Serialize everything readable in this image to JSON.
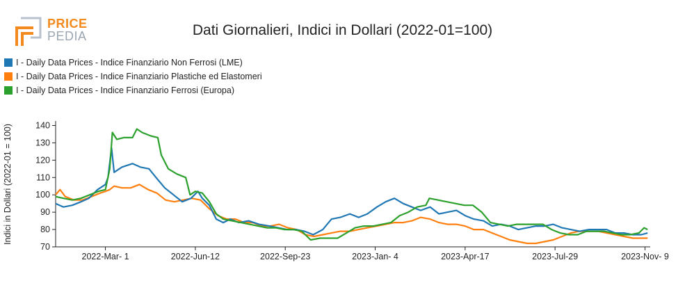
{
  "logo": {
    "text_top": "PRICE",
    "text_bottom": "PEDIA"
  },
  "chart_data": {
    "type": "line",
    "title": "Dati Giornalieri, Indici in Dollari (2022-01=100)",
    "ylabel": "Indici in Dollari (2022-01 = 100)",
    "xlabel": "",
    "ylim": [
      70,
      141
    ],
    "xlim": [
      "2022-01-03",
      "2023-11-15"
    ],
    "yticks": [
      70,
      80,
      90,
      100,
      110,
      120,
      130,
      140
    ],
    "xticks": [
      {
        "date": "2022-03-01",
        "label": "2022-Mar- 1"
      },
      {
        "date": "2022-06-12",
        "label": "2022-Jun-12"
      },
      {
        "date": "2022-09-23",
        "label": "2022-Sep-23"
      },
      {
        "date": "2023-01-04",
        "label": "2023-Jan- 4"
      },
      {
        "date": "2023-04-17",
        "label": "2023-Apr-17"
      },
      {
        "date": "2023-07-29",
        "label": "2023-Jul-29"
      },
      {
        "date": "2023-11-09",
        "label": "2023-Nov- 9"
      }
    ],
    "legend_position": "top-left",
    "grid": false,
    "series": [
      {
        "name": "I - Daily Data Prices - Indice Finanziario Non Ferrosi (LME)",
        "color": "#1f77b4",
        "points": [
          [
            "2022-01-03",
            95
          ],
          [
            "2022-01-12",
            93
          ],
          [
            "2022-01-22",
            94
          ],
          [
            "2022-02-01",
            96
          ],
          [
            "2022-02-10",
            98
          ],
          [
            "2022-02-20",
            103
          ],
          [
            "2022-03-01",
            106
          ],
          [
            "2022-03-04",
            110
          ],
          [
            "2022-03-08",
            127
          ],
          [
            "2022-03-11",
            113
          ],
          [
            "2022-03-20",
            116
          ],
          [
            "2022-04-01",
            118
          ],
          [
            "2022-04-10",
            116
          ],
          [
            "2022-04-20",
            115
          ],
          [
            "2022-04-28",
            110
          ],
          [
            "2022-05-08",
            104
          ],
          [
            "2022-05-18",
            100
          ],
          [
            "2022-05-28",
            96
          ],
          [
            "2022-06-07",
            98
          ],
          [
            "2022-06-15",
            102
          ],
          [
            "2022-06-20",
            98
          ],
          [
            "2022-06-28",
            94
          ],
          [
            "2022-07-06",
            86
          ],
          [
            "2022-07-14",
            84
          ],
          [
            "2022-07-22",
            86
          ],
          [
            "2022-08-01",
            84
          ],
          [
            "2022-08-12",
            85
          ],
          [
            "2022-08-24",
            83
          ],
          [
            "2022-09-05",
            82
          ],
          [
            "2022-09-15",
            81
          ],
          [
            "2022-09-25",
            80
          ],
          [
            "2022-10-05",
            80
          ],
          [
            "2022-10-15",
            79
          ],
          [
            "2022-10-25",
            77
          ],
          [
            "2022-11-05",
            80
          ],
          [
            "2022-11-15",
            86
          ],
          [
            "2022-11-25",
            87
          ],
          [
            "2022-12-06",
            89
          ],
          [
            "2022-12-16",
            87
          ],
          [
            "2022-12-26",
            89
          ],
          [
            "2023-01-06",
            93
          ],
          [
            "2023-01-16",
            96
          ],
          [
            "2023-01-26",
            98
          ],
          [
            "2023-02-05",
            95
          ],
          [
            "2023-02-15",
            93
          ],
          [
            "2023-02-25",
            91
          ],
          [
            "2023-03-08",
            93
          ],
          [
            "2023-03-18",
            89
          ],
          [
            "2023-03-28",
            90
          ],
          [
            "2023-04-07",
            91
          ],
          [
            "2023-04-17",
            88
          ],
          [
            "2023-04-27",
            86
          ],
          [
            "2023-05-08",
            85
          ],
          [
            "2023-05-18",
            82
          ],
          [
            "2023-05-28",
            83
          ],
          [
            "2023-06-07",
            82
          ],
          [
            "2023-06-17",
            80
          ],
          [
            "2023-06-27",
            81
          ],
          [
            "2023-07-07",
            82
          ],
          [
            "2023-07-17",
            82
          ],
          [
            "2023-07-27",
            83
          ],
          [
            "2023-08-06",
            81
          ],
          [
            "2023-08-16",
            80
          ],
          [
            "2023-08-26",
            79
          ],
          [
            "2023-09-06",
            80
          ],
          [
            "2023-09-16",
            80
          ],
          [
            "2023-09-26",
            80
          ],
          [
            "2023-10-06",
            78
          ],
          [
            "2023-10-16",
            78
          ],
          [
            "2023-10-26",
            77
          ],
          [
            "2023-11-05",
            77
          ],
          [
            "2023-11-12",
            78
          ]
        ]
      },
      {
        "name": "I - Daily Data Prices - Indice Finanziario Plastiche ed Elastomeri",
        "color": "#ff7f0e",
        "points": [
          [
            "2022-01-03",
            100
          ],
          [
            "2022-01-08",
            103
          ],
          [
            "2022-01-14",
            99
          ],
          [
            "2022-01-24",
            97
          ],
          [
            "2022-02-03",
            97
          ],
          [
            "2022-02-13",
            99
          ],
          [
            "2022-02-23",
            101
          ],
          [
            "2022-03-01",
            102
          ],
          [
            "2022-03-06",
            103
          ],
          [
            "2022-03-11",
            105
          ],
          [
            "2022-03-20",
            104
          ],
          [
            "2022-03-30",
            104
          ],
          [
            "2022-04-09",
            106
          ],
          [
            "2022-04-19",
            103
          ],
          [
            "2022-04-29",
            101
          ],
          [
            "2022-05-09",
            97
          ],
          [
            "2022-05-19",
            96
          ],
          [
            "2022-05-29",
            97
          ],
          [
            "2022-06-08",
            98
          ],
          [
            "2022-06-18",
            97
          ],
          [
            "2022-06-28",
            92
          ],
          [
            "2022-07-08",
            88
          ],
          [
            "2022-07-18",
            86
          ],
          [
            "2022-07-28",
            86
          ],
          [
            "2022-08-07",
            84
          ],
          [
            "2022-08-17",
            84
          ],
          [
            "2022-08-27",
            82
          ],
          [
            "2022-09-06",
            82
          ],
          [
            "2022-09-16",
            83
          ],
          [
            "2022-09-26",
            81
          ],
          [
            "2022-10-06",
            80
          ],
          [
            "2022-10-16",
            77
          ],
          [
            "2022-10-26",
            76
          ],
          [
            "2022-11-05",
            77
          ],
          [
            "2022-11-15",
            78
          ],
          [
            "2022-11-25",
            79
          ],
          [
            "2022-12-06",
            79
          ],
          [
            "2022-12-16",
            80
          ],
          [
            "2022-12-26",
            81
          ],
          [
            "2023-01-06",
            82
          ],
          [
            "2023-01-16",
            83
          ],
          [
            "2023-01-26",
            84
          ],
          [
            "2023-02-05",
            84
          ],
          [
            "2023-02-15",
            85
          ],
          [
            "2023-02-25",
            87
          ],
          [
            "2023-03-08",
            86
          ],
          [
            "2023-03-18",
            84
          ],
          [
            "2023-03-28",
            83
          ],
          [
            "2023-04-07",
            83
          ],
          [
            "2023-04-17",
            82
          ],
          [
            "2023-04-27",
            80
          ],
          [
            "2023-05-08",
            80
          ],
          [
            "2023-05-18",
            78
          ],
          [
            "2023-05-28",
            76
          ],
          [
            "2023-06-07",
            74
          ],
          [
            "2023-06-17",
            73
          ],
          [
            "2023-06-27",
            72
          ],
          [
            "2023-07-07",
            72
          ],
          [
            "2023-07-17",
            73
          ],
          [
            "2023-07-27",
            74
          ],
          [
            "2023-08-06",
            76
          ],
          [
            "2023-08-16",
            78
          ],
          [
            "2023-08-26",
            79
          ],
          [
            "2023-09-06",
            79
          ],
          [
            "2023-09-16",
            79
          ],
          [
            "2023-09-26",
            78
          ],
          [
            "2023-10-06",
            77
          ],
          [
            "2023-10-16",
            76
          ],
          [
            "2023-10-26",
            75
          ],
          [
            "2023-11-05",
            75
          ],
          [
            "2023-11-12",
            75
          ]
        ]
      },
      {
        "name": "I - Daily Data Prices - Indice Finanziario Ferrosi (Europa)",
        "color": "#2ca02c",
        "points": [
          [
            "2022-01-03",
            99
          ],
          [
            "2022-01-12",
            98
          ],
          [
            "2022-01-22",
            97
          ],
          [
            "2022-02-01",
            98
          ],
          [
            "2022-02-11",
            100
          ],
          [
            "2022-02-21",
            102
          ],
          [
            "2022-03-01",
            103
          ],
          [
            "2022-03-06",
            115
          ],
          [
            "2022-03-09",
            136
          ],
          [
            "2022-03-14",
            132
          ],
          [
            "2022-03-22",
            133
          ],
          [
            "2022-04-01",
            133
          ],
          [
            "2022-04-06",
            138
          ],
          [
            "2022-04-12",
            136
          ],
          [
            "2022-04-22",
            134
          ],
          [
            "2022-04-30",
            133
          ],
          [
            "2022-05-04",
            123
          ],
          [
            "2022-05-12",
            115
          ],
          [
            "2022-05-22",
            112
          ],
          [
            "2022-06-01",
            110
          ],
          [
            "2022-06-06",
            100
          ],
          [
            "2022-06-12",
            102
          ],
          [
            "2022-06-20",
            101
          ],
          [
            "2022-06-28",
            96
          ],
          [
            "2022-07-06",
            89
          ],
          [
            "2022-07-14",
            86
          ],
          [
            "2022-07-24",
            85
          ],
          [
            "2022-08-03",
            84
          ],
          [
            "2022-08-13",
            83
          ],
          [
            "2022-08-23",
            82
          ],
          [
            "2022-09-02",
            81
          ],
          [
            "2022-09-12",
            81
          ],
          [
            "2022-09-22",
            80
          ],
          [
            "2022-10-02",
            80
          ],
          [
            "2022-10-12",
            79
          ],
          [
            "2022-10-22",
            74
          ],
          [
            "2022-11-02",
            75
          ],
          [
            "2022-11-12",
            75
          ],
          [
            "2022-11-22",
            75
          ],
          [
            "2022-12-02",
            78
          ],
          [
            "2022-12-12",
            81
          ],
          [
            "2022-12-22",
            82
          ],
          [
            "2023-01-02",
            82
          ],
          [
            "2023-01-12",
            83
          ],
          [
            "2023-01-22",
            84
          ],
          [
            "2023-02-01",
            88
          ],
          [
            "2023-02-11",
            90
          ],
          [
            "2023-02-21",
            93
          ],
          [
            "2023-03-03",
            94
          ],
          [
            "2023-03-07",
            98
          ],
          [
            "2023-03-17",
            97
          ],
          [
            "2023-03-27",
            96
          ],
          [
            "2023-04-06",
            95
          ],
          [
            "2023-04-16",
            94
          ],
          [
            "2023-04-26",
            94
          ],
          [
            "2023-05-06",
            90
          ],
          [
            "2023-05-16",
            84
          ],
          [
            "2023-05-26",
            83
          ],
          [
            "2023-06-05",
            82
          ],
          [
            "2023-06-15",
            83
          ],
          [
            "2023-06-25",
            83
          ],
          [
            "2023-07-05",
            83
          ],
          [
            "2023-07-15",
            83
          ],
          [
            "2023-07-25",
            80
          ],
          [
            "2023-08-04",
            78
          ],
          [
            "2023-08-14",
            77
          ],
          [
            "2023-08-24",
            77
          ],
          [
            "2023-09-03",
            79
          ],
          [
            "2023-09-13",
            79
          ],
          [
            "2023-09-23",
            79
          ],
          [
            "2023-10-03",
            78
          ],
          [
            "2023-10-13",
            77
          ],
          [
            "2023-10-23",
            77
          ],
          [
            "2023-11-02",
            78
          ],
          [
            "2023-11-08",
            81
          ],
          [
            "2023-11-12",
            80
          ]
        ]
      }
    ]
  }
}
